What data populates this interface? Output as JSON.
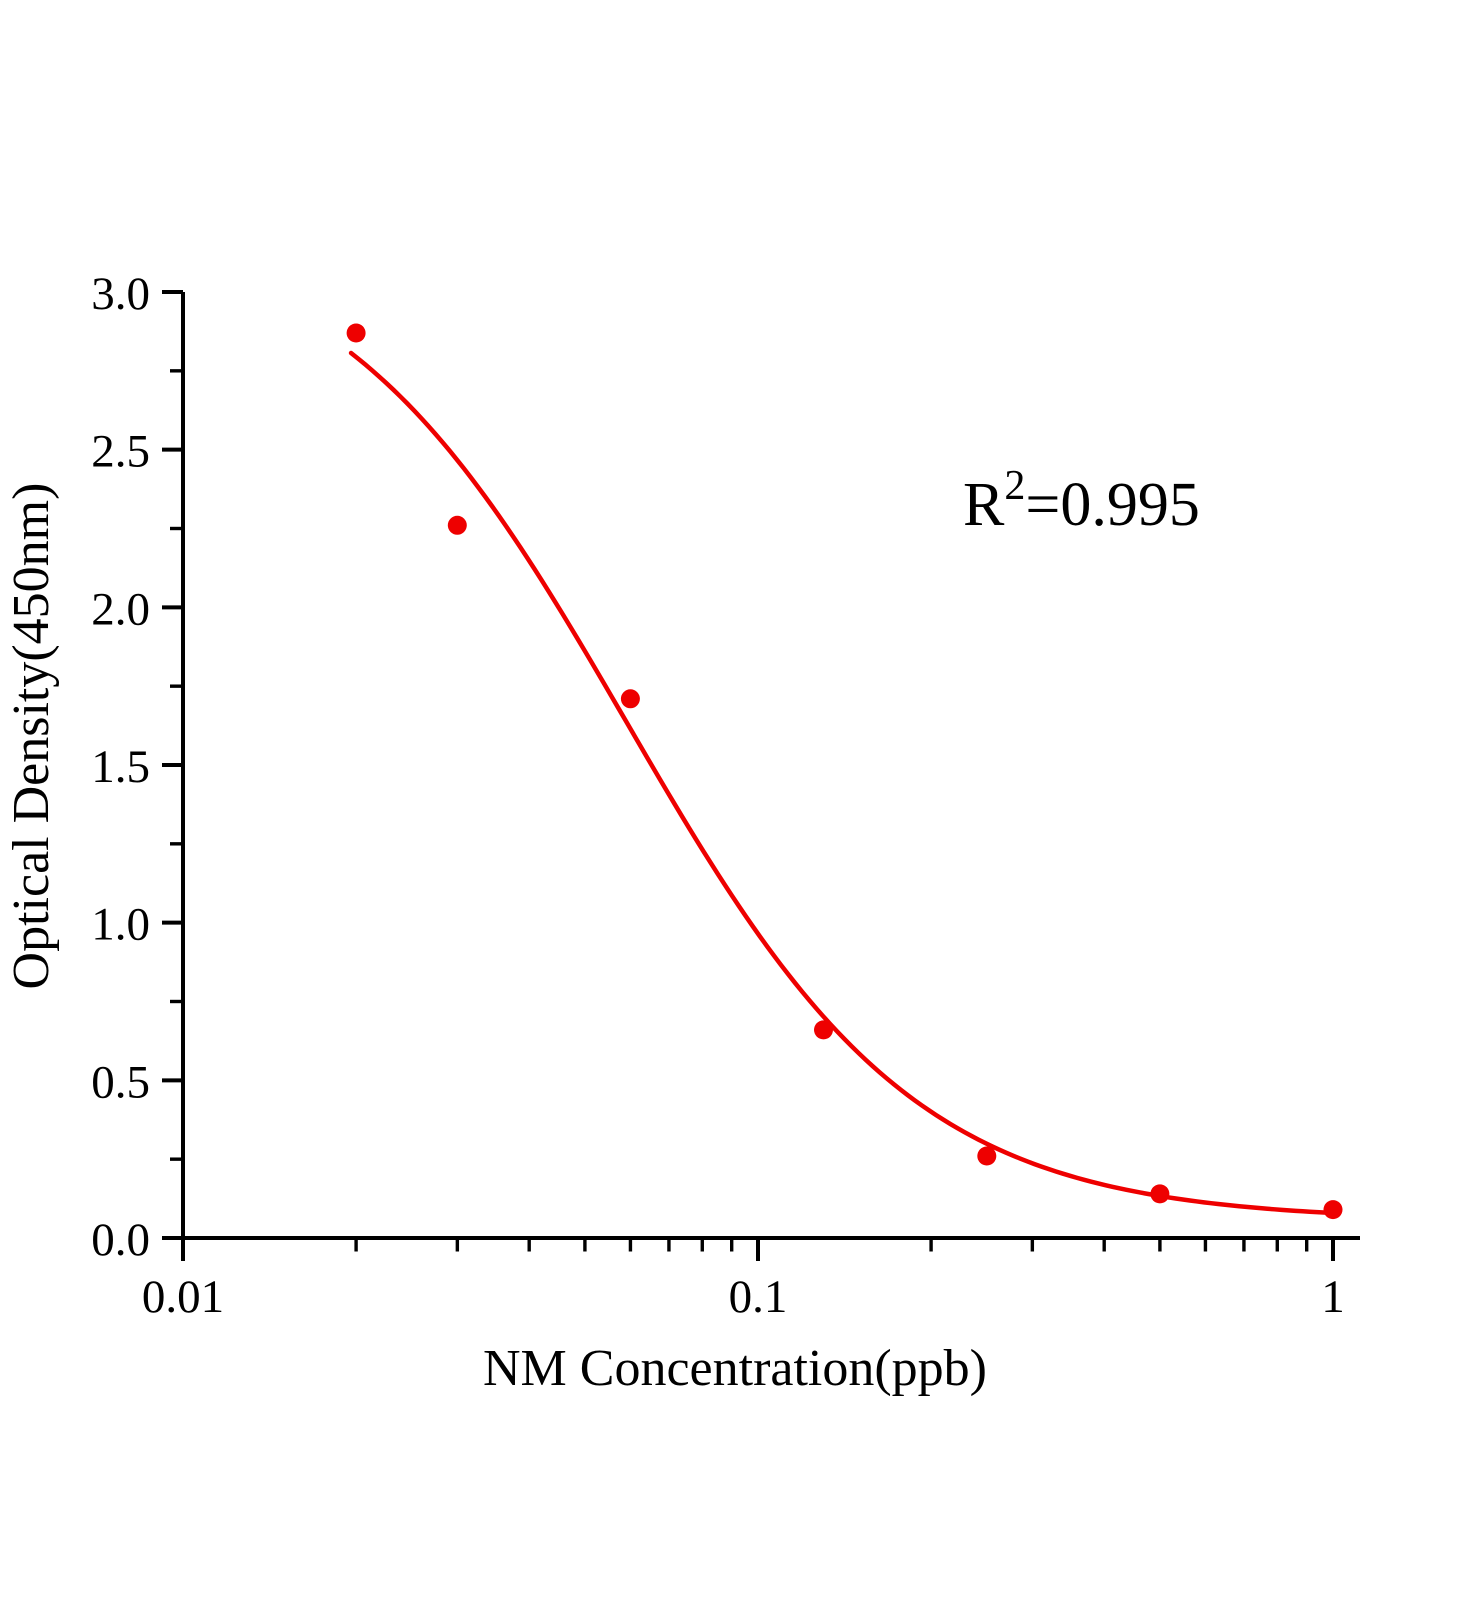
{
  "figure": {
    "background": "#ffffff",
    "title": ""
  },
  "annotation": {
    "full_text": "R2=0.995",
    "base": "R",
    "superscript": "2",
    "suffix": "=0.995"
  },
  "chart_data": {
    "type": "scatter",
    "title": "",
    "xlabel": "NM Concentration(ppb)",
    "ylabel": "Optical Density(450nm)",
    "x_scale": "log",
    "y_scale": "linear",
    "xlim": [
      0.01,
      1.12
    ],
    "ylim": [
      0.0,
      3.0
    ],
    "grid": false,
    "legend": null,
    "x_major_ticks": [
      0.01,
      0.1,
      1
    ],
    "x_tick_labels": [
      "0.01",
      "0.1",
      "1"
    ],
    "x_minor_tick_multiples": [
      2,
      3,
      4,
      5,
      6,
      7,
      8,
      9
    ],
    "y_major_ticks": [
      0.0,
      0.5,
      1.0,
      1.5,
      2.0,
      2.5,
      3.0
    ],
    "y_tick_labels": [
      "0.0",
      "0.5",
      "1.0",
      "1.5",
      "2.0",
      "2.5",
      "3.0"
    ],
    "y_minor_step": 0.25,
    "series": [
      {
        "name": "standard-points",
        "type": "scatter",
        "x": [
          0.02,
          0.03,
          0.06,
          0.13,
          0.25,
          0.5,
          1.0
        ],
        "y": [
          2.87,
          2.26,
          1.71,
          0.66,
          0.26,
          0.14,
          0.09
        ],
        "color": "#ee0000",
        "marker": "circle",
        "marker_radius": 9.5
      },
      {
        "name": "fit-curve",
        "type": "4pl-fit",
        "params": {
          "a": 3.22,
          "b": 1.72,
          "c": 0.059,
          "d": 0.055
        },
        "x_range": [
          0.0196,
          1.02
        ],
        "color": "#ee0000",
        "stroke_width": 4.5,
        "r_squared": "0.995"
      }
    ],
    "colors": {
      "points": "#ee0000",
      "curve": "#ee0000",
      "axis": "#000000",
      "text": "#000000",
      "background": "#ffffff"
    }
  }
}
